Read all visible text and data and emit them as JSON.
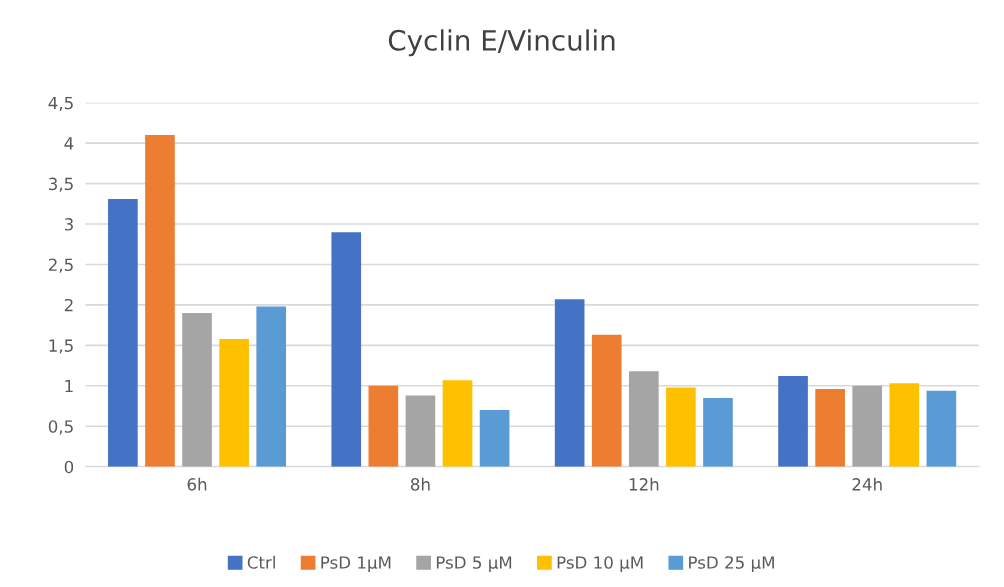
{
  "chart_data": {
    "type": "bar",
    "title": "Cyclin E/Vinculin",
    "categories": [
      "6h",
      "8h",
      "12h",
      "24h"
    ],
    "series": [
      {
        "name": "Ctrl",
        "color": "#4472c4",
        "values": [
          3.31,
          2.9,
          2.07,
          1.12
        ]
      },
      {
        "name": "PsD 1µM",
        "color": "#ed7d31",
        "values": [
          4.1,
          1.0,
          1.63,
          0.96
        ]
      },
      {
        "name": "PsD 5 µM",
        "color": "#a5a5a5",
        "values": [
          1.9,
          0.88,
          1.18,
          1.0
        ]
      },
      {
        "name": "PsD 10 µM",
        "color": "#ffc000",
        "values": [
          1.58,
          1.07,
          0.98,
          1.03
        ]
      },
      {
        "name": "PsD 25 µM",
        "color": "#5b9bd5",
        "values": [
          1.98,
          0.7,
          0.85,
          0.94
        ]
      }
    ],
    "ylim": [
      0,
      4.5
    ],
    "yticks": [
      0,
      {
        "value": 0.5,
        "label": "0,5"
      },
      1,
      {
        "value": 1.5,
        "label": "1,5"
      },
      2,
      {
        "value": 2.5,
        "label": "2,5"
      },
      3,
      {
        "value": 3.5,
        "label": "3,5"
      },
      4,
      {
        "value": 4.5,
        "label": "4,5"
      }
    ],
    "grid": "y",
    "legend": "bottom"
  }
}
